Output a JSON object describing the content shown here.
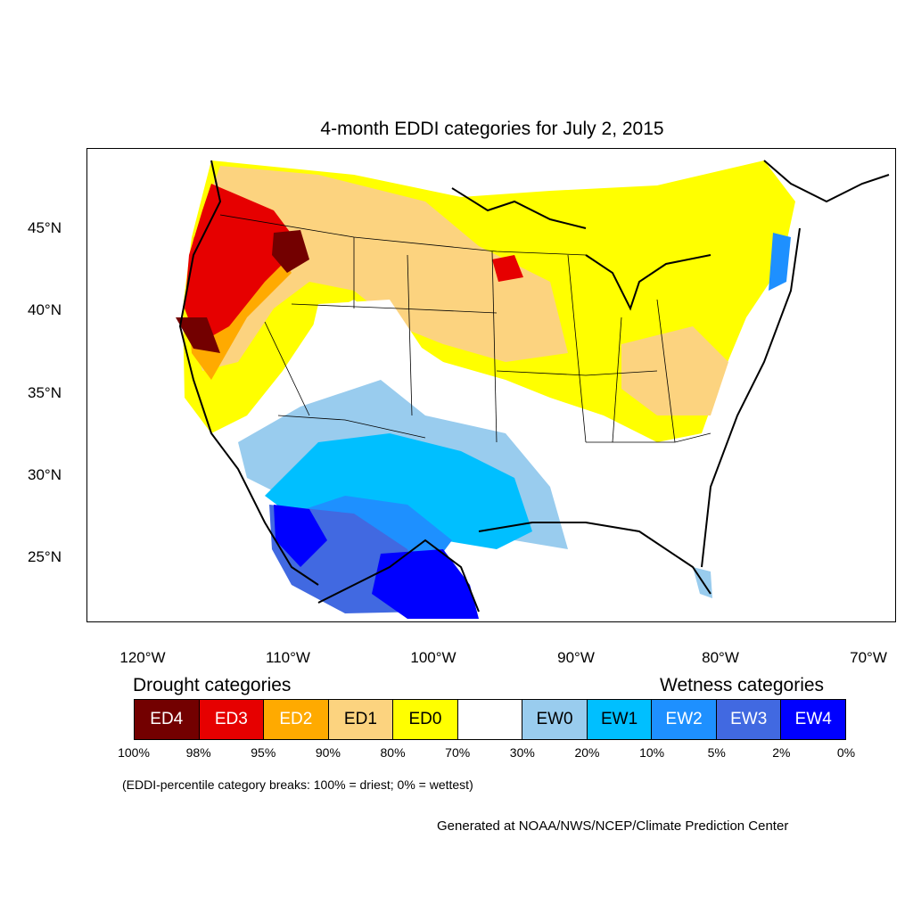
{
  "title": "4-month EDDI categories for July 2, 2015",
  "lat_labels": [
    "45°N",
    "40°N",
    "35°N",
    "30°N",
    "25°N"
  ],
  "lon_labels": [
    "120°W",
    "110°W",
    "100°W",
    "90°W",
    "80°W",
    "70°W"
  ],
  "legend": {
    "drought_heading": "Drought categories",
    "wetness_heading": "Wetness categories",
    "categories": [
      {
        "label": "ED4",
        "color": "#730000",
        "text_color": "#ffffff"
      },
      {
        "label": "ED3",
        "color": "#e60000",
        "text_color": "#ffffff"
      },
      {
        "label": "ED2",
        "color": "#ffaa00",
        "text_color": "#ffffff"
      },
      {
        "label": "ED1",
        "color": "#fcd37f",
        "text_color": "#000000"
      },
      {
        "label": "ED0",
        "color": "#ffff00",
        "text_color": "#000000"
      },
      {
        "label": "",
        "color": "#ffffff",
        "text_color": "#000000"
      },
      {
        "label": "EW0",
        "color": "#99ccee",
        "text_color": "#000000"
      },
      {
        "label": "EW1",
        "color": "#00bfff",
        "text_color": "#000000"
      },
      {
        "label": "EW2",
        "color": "#1e90ff",
        "text_color": "#ffffff"
      },
      {
        "label": "EW3",
        "color": "#4169e1",
        "text_color": "#ffffff"
      },
      {
        "label": "EW4",
        "color": "#0000ff",
        "text_color": "#ffffff"
      }
    ],
    "percent_breaks": [
      "100%",
      "98%",
      "95%",
      "90%",
      "80%",
      "70%",
      "30%",
      "20%",
      "10%",
      "5%",
      "2%",
      "0%"
    ]
  },
  "note": "(EDDI-percentile category breaks: 100% = driest; 0% = wettest)",
  "credit": "Generated at NOAA/NWS/NCEP/Climate Prediction Center"
}
